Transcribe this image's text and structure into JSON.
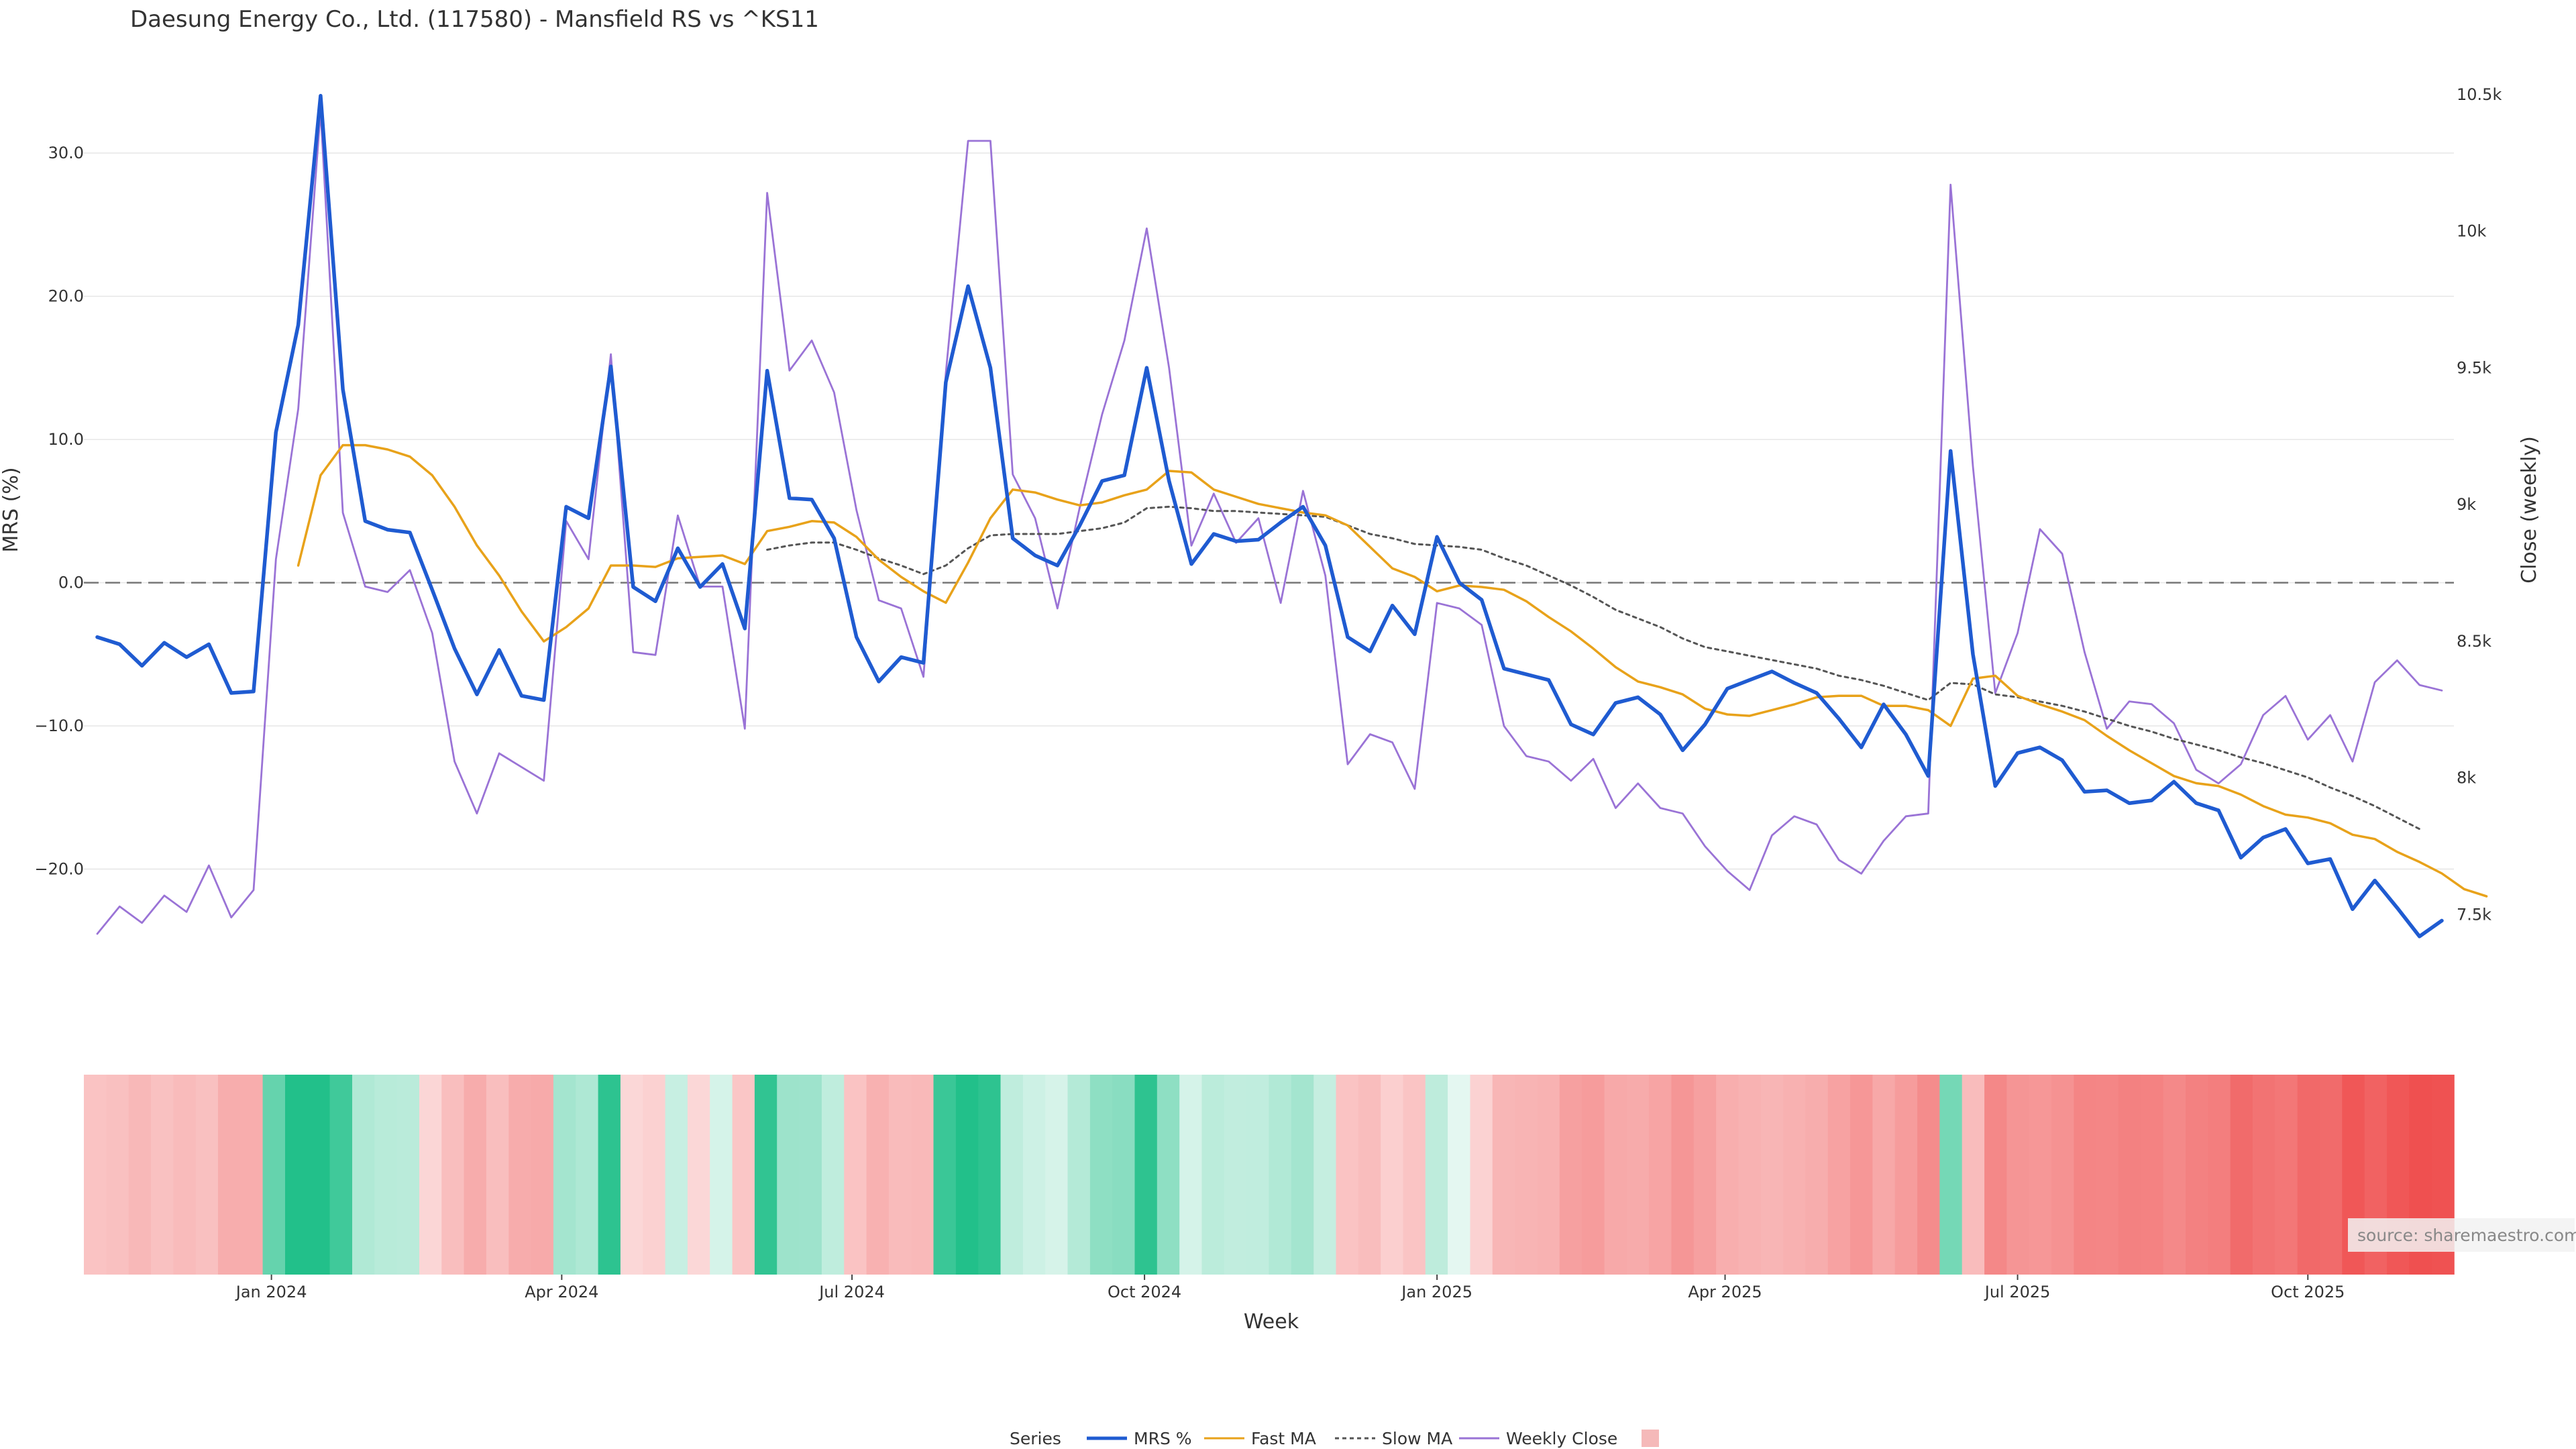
{
  "chart_data": {
    "type": "line",
    "title": "Daesung Energy Co., Ltd. (117580) - Mansfield RS vs ^KS11",
    "xlabel": "Week",
    "ylabel_left": "MRS (%)",
    "ylabel_right": "Close (weekly)",
    "ylim_left": [
      -27,
      36
    ],
    "ylim_right": [
      7300,
      10600
    ],
    "yticks_left": [
      "30.0",
      "20.0",
      "10.0",
      "0.0",
      "−10.0",
      "−20.0"
    ],
    "yticks_left_values": [
      30,
      20,
      10,
      0,
      -10,
      -20
    ],
    "yticks_right": [
      "10.5k",
      "10k",
      "9.5k",
      "9k",
      "8.5k",
      "8k",
      "7.5k"
    ],
    "yticks_right_values": [
      10500,
      10000,
      9500,
      9000,
      8500,
      8000,
      7500
    ],
    "xticks": [
      "Jan 2024",
      "Apr 2024",
      "Jul 2024",
      "Oct 2024",
      "Jan 2025",
      "Apr 2025",
      "Jul 2025",
      "Oct 2025"
    ],
    "xticks_index": [
      7.8,
      20.8,
      33.8,
      46.9,
      60.0,
      72.9,
      86.0,
      99.0
    ],
    "legend": {
      "title": "Series",
      "placement": "bottom-center",
      "entries": [
        "MRS %",
        "Fast MA",
        "Slow MA",
        "Weekly Close",
        ""
      ]
    },
    "source_text": "source: sharemaestro.com",
    "colors": {
      "mrs": "#1f5bd1",
      "fast": "#e8a21a",
      "slow": "#555555",
      "close": "#9a73d6",
      "zero_line": "#777777",
      "grid": "#e6e6e6",
      "positive": "#22c08a",
      "negative": "#ef5050"
    },
    "series": [
      {
        "name": "MRS %",
        "start_index": 0,
        "values": [
          -3.8,
          -4.3,
          -5.8,
          -4.2,
          -5.2,
          -4.3,
          -7.7,
          -7.6,
          10.5,
          18.0,
          34.0,
          13.5,
          4.3,
          3.7,
          3.5,
          -0.5,
          -4.6,
          -7.8,
          -4.7,
          -7.9,
          -8.2,
          5.3,
          4.5,
          15.1,
          -0.3,
          -1.3,
          2.4,
          -0.3,
          1.3,
          -3.2,
          14.8,
          5.9,
          5.8,
          3.1,
          -3.8,
          -6.9,
          -5.2,
          -5.6,
          14.0,
          20.7,
          15.0,
          3.1,
          1.9,
          1.2,
          4.0,
          7.1,
          7.5,
          15.0,
          7.1,
          1.3,
          3.4,
          2.9,
          3.0,
          4.2,
          5.3,
          2.6,
          -3.8,
          -4.8,
          -1.6,
          -3.6,
          3.2,
          0.0,
          -1.2,
          -6.0,
          -6.4,
          -6.8,
          -9.9,
          -10.6,
          -8.4,
          -8.0,
          -9.2,
          -11.7,
          -9.9,
          -7.4,
          -6.8,
          -6.2,
          -7.0,
          -7.7,
          -9.5,
          -11.5,
          -8.5,
          -10.6,
          -13.5,
          9.2,
          -5.0,
          -14.2,
          -11.9,
          -11.5,
          -12.4,
          -14.6,
          -14.5,
          -15.4,
          -15.2,
          -13.9,
          -15.4,
          -15.9,
          -19.2,
          -17.8,
          -17.2,
          -19.6,
          -19.3,
          -22.8,
          -20.8,
          -22.7,
          -24.7,
          -23.6
        ]
      },
      {
        "name": "Fast MA",
        "start_index": 9,
        "values": [
          1.2,
          7.5,
          9.6,
          9.6,
          9.3,
          8.8,
          7.5,
          5.3,
          2.6,
          0.5,
          -2.0,
          -4.1,
          -3.1,
          -1.8,
          1.2,
          1.2,
          1.1,
          1.7,
          1.8,
          1.9,
          1.3,
          3.6,
          3.9,
          4.3,
          4.2,
          3.2,
          1.6,
          0.4,
          -0.6,
          -1.4,
          1.4,
          4.5,
          6.5,
          6.3,
          5.8,
          5.4,
          5.6,
          6.1,
          6.5,
          7.8,
          7.7,
          6.5,
          6.0,
          5.5,
          5.2,
          4.9,
          4.7,
          4.0,
          2.5,
          1.0,
          0.4,
          -0.6,
          -0.2,
          -0.3,
          -0.5,
          -1.3,
          -2.4,
          -3.4,
          -4.6,
          -5.9,
          -6.9,
          -7.3,
          -7.8,
          -8.8,
          -9.2,
          -9.3,
          -8.9,
          -8.5,
          -8.0,
          -7.9,
          -7.9,
          -8.6,
          -8.6,
          -8.9,
          -10.0,
          -6.7,
          -6.5,
          -7.9,
          -8.5,
          -9.0,
          -9.6,
          -10.7,
          -11.7,
          -12.6,
          -13.5,
          -14.0,
          -14.2,
          -14.8,
          -15.6,
          -16.2,
          -16.4,
          -16.8,
          -17.6,
          -17.9,
          -18.8,
          -19.5,
          -20.3,
          -21.4,
          -21.9
        ]
      },
      {
        "name": "Slow MA",
        "start_index": 30,
        "values": [
          2.3,
          2.6,
          2.8,
          2.8,
          2.3,
          1.7,
          1.2,
          0.6,
          1.2,
          2.4,
          3.3,
          3.4,
          3.4,
          3.4,
          3.6,
          3.8,
          4.2,
          5.2,
          5.3,
          5.2,
          5.0,
          5.0,
          4.9,
          4.8,
          4.7,
          4.6,
          4.0,
          3.4,
          3.1,
          2.7,
          2.6,
          2.5,
          2.3,
          1.7,
          1.2,
          0.5,
          -0.2,
          -1.0,
          -1.9,
          -2.5,
          -3.1,
          -3.9,
          -4.5,
          -4.8,
          -5.1,
          -5.4,
          -5.7,
          -6.0,
          -6.5,
          -6.8,
          -7.2,
          -7.7,
          -8.2,
          -7.0,
          -7.1,
          -7.8,
          -8.0,
          -8.3,
          -8.6,
          -9.0,
          -9.5,
          -10.0,
          -10.4,
          -10.9,
          -11.3,
          -11.7,
          -12.2,
          -12.6,
          -13.1,
          -13.6,
          -14.3,
          -14.9,
          -15.6,
          -16.4,
          -17.2
        ]
      },
      {
        "name": "Weekly Close",
        "start_index": 0,
        "values": [
          7430,
          7530,
          7470,
          7570,
          7510,
          7680,
          7490,
          7590,
          8800,
          9350,
          10440,
          8970,
          8700,
          8680,
          8760,
          8530,
          8060,
          7870,
          8090,
          8040,
          7990,
          8940,
          8800,
          9550,
          8460,
          8450,
          8960,
          8700,
          8700,
          8180,
          10140,
          9490,
          9600,
          9410,
          8980,
          8650,
          8620,
          8370,
          9480,
          10330,
          10330,
          9110,
          8950,
          8620,
          8990,
          9330,
          9600,
          10010,
          9500,
          8850,
          9040,
          8860,
          8950,
          8640,
          9050,
          8740,
          8050,
          8160,
          8130,
          7960,
          8640,
          8620,
          8560,
          8190,
          8080,
          8060,
          7990,
          8070,
          7890,
          7980,
          7890,
          7870,
          7750,
          7660,
          7590,
          7790,
          7860,
          7830,
          7700,
          7650,
          7770,
          7860,
          7870,
          10170,
          9140,
          8310,
          8530,
          8910,
          8820,
          8460,
          8180,
          8280,
          8270,
          8200,
          8030,
          7980,
          8050,
          8230,
          8300,
          8140,
          8230,
          8060,
          8350,
          8430,
          8340,
          8320
        ]
      }
    ],
    "heatmap_strip": {
      "description": "MRS sign/intensity band under the main plot, one cell per week, same values as MRS %",
      "series": "MRS %"
    }
  }
}
